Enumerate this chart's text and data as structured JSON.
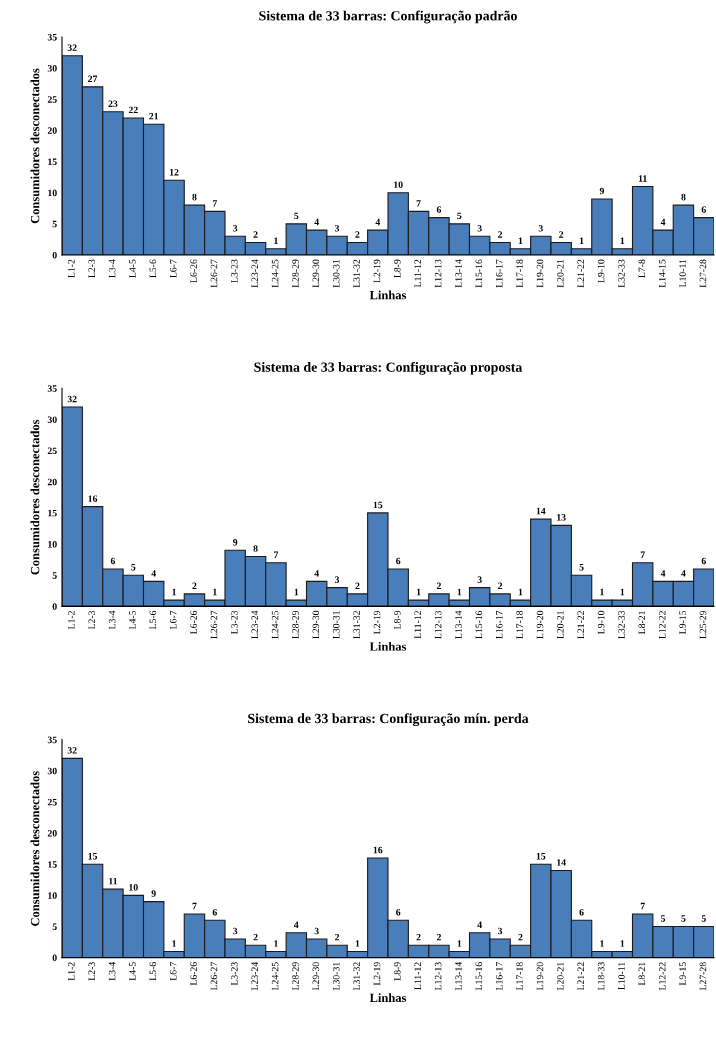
{
  "chart_data": [
    {
      "type": "bar",
      "title": "Sistema de 33 barras: Configuração padrão",
      "xlabel": "Linhas",
      "ylabel": "Consumidores desconectados",
      "color": "#4a7ebb",
      "categories": [
        "L1-2",
        "L2-3",
        "L3-4",
        "L4-5",
        "L5-6",
        "L6-7",
        "L6-26",
        "L26-27",
        "L3-23",
        "L23-24",
        "L24-25",
        "L28-29",
        "L29-30",
        "L30-31",
        "L31-32",
        "L2-19",
        "L8-9",
        "L11-12",
        "L12-13",
        "L13-14",
        "L15-16",
        "L16-17",
        "L17-18",
        "L19-20",
        "L20-21",
        "L21-22",
        "L9-10",
        "L32-33",
        "L7-8",
        "L14-15",
        "L10-11",
        "L27-28"
      ],
      "values": [
        32,
        27,
        23,
        22,
        21,
        12,
        8,
        7,
        3,
        2,
        1,
        5,
        4,
        3,
        2,
        4,
        10,
        7,
        6,
        5,
        3,
        2,
        1,
        3,
        2,
        1,
        9,
        1,
        11,
        4,
        8,
        6
      ],
      "ylim": [
        0,
        35
      ],
      "yticks": [
        0,
        5,
        10,
        15,
        20,
        25,
        30,
        35
      ],
      "data_labels": true,
      "grid": false,
      "legend": false
    },
    {
      "type": "bar",
      "title": "Sistema de 33 barras: Configuração proposta",
      "xlabel": "Linhas",
      "ylabel": "Consumidores desconectados",
      "color": "#4a7ebb",
      "categories": [
        "L1-2",
        "L2-3",
        "L3-4",
        "L4-5",
        "L5-6",
        "L6-7",
        "L6-26",
        "L26-27",
        "L3-23",
        "L23-24",
        "L24-25",
        "L28-29",
        "L29-30",
        "L30-31",
        "L31-32",
        "L2-19",
        "L8-9",
        "L11-12",
        "L12-13",
        "L13-14",
        "L15-16",
        "L16-17",
        "L17-18",
        "L19-20",
        "L20-21",
        "L21-22",
        "L9-10",
        "L32-33",
        "L8-21",
        "L12-22",
        "L9-15",
        "L25-29"
      ],
      "values": [
        32,
        16,
        6,
        5,
        4,
        1,
        2,
        1,
        9,
        8,
        7,
        1,
        4,
        3,
        2,
        15,
        6,
        1,
        2,
        1,
        3,
        2,
        1,
        14,
        13,
        5,
        1,
        1,
        7,
        4,
        4,
        6
      ],
      "ylim": [
        0,
        35
      ],
      "yticks": [
        0,
        5,
        10,
        15,
        20,
        25,
        30,
        35
      ],
      "data_labels": true,
      "grid": false,
      "legend": false
    },
    {
      "type": "bar",
      "title": "Sistema de 33 barras: Configuração mín. perda",
      "xlabel": "Linhas",
      "ylabel": "Consumidores desconectados",
      "color": "#4a7ebb",
      "categories": [
        "L1-2",
        "L2-3",
        "L3-4",
        "L4-5",
        "L5-6",
        "L6-7",
        "L6-26",
        "L26-27",
        "L3-23",
        "L23-24",
        "L24-25",
        "L28-29",
        "L29-30",
        "L30-31",
        "L31-32",
        "L2-19",
        "L8-9",
        "L11-12",
        "L12-13",
        "L13-14",
        "L15-16",
        "L16-17",
        "L17-18",
        "L19-20",
        "L20-21",
        "L21-22",
        "L18-33",
        "L10-11",
        "L8-21",
        "L12-22",
        "L9-15",
        "L27-28"
      ],
      "values": [
        32,
        15,
        11,
        10,
        9,
        1,
        7,
        6,
        3,
        2,
        1,
        4,
        3,
        2,
        1,
        16,
        6,
        2,
        2,
        1,
        4,
        3,
        2,
        15,
        14,
        6,
        1,
        1,
        7,
        5,
        5,
        5
      ],
      "ylim": [
        0,
        35
      ],
      "yticks": [
        0,
        5,
        10,
        15,
        20,
        25,
        30,
        35
      ],
      "data_labels": true,
      "grid": false,
      "legend": false
    }
  ]
}
